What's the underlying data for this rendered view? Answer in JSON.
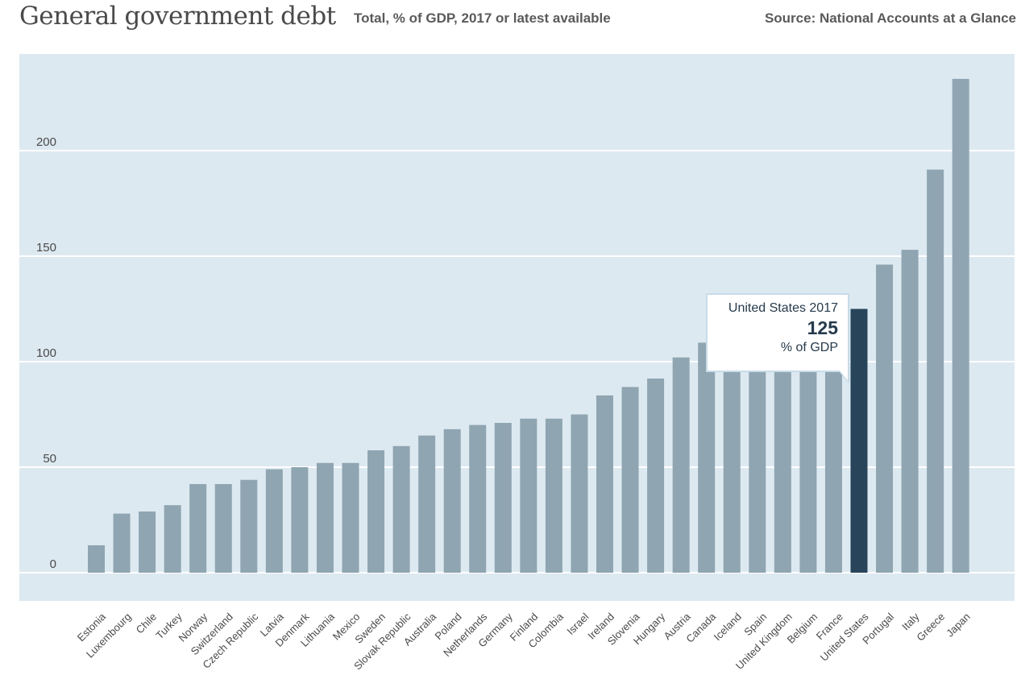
{
  "header": {
    "title": "General government debt",
    "subtitle": "Total, % of GDP, 2017 or latest available",
    "source": "Source: National Accounts at a Glance"
  },
  "tooltip": {
    "title": "United States 2017",
    "value": "125",
    "unit": "% of GDP"
  },
  "colors": {
    "panel": "#dde9f1",
    "bar": "#8fa5b1",
    "highlight": "#28445a",
    "grid": "#ffffff",
    "axis_text": "#4a4a4a"
  },
  "chart_data": {
    "type": "bar",
    "title": "General government debt",
    "subtitle": "Total, % of GDP, 2017 or latest available",
    "xlabel": "",
    "ylabel": "% of GDP",
    "ylim": [
      -13,
      238
    ],
    "yticks": [
      0,
      50,
      100,
      150,
      200
    ],
    "grid": true,
    "highlighted": "United States",
    "categories": [
      "Estonia",
      "Luxembourg",
      "Chile",
      "Turkey",
      "Norway",
      "Switzerland",
      "Czech Republic",
      "Latvia",
      "Denmark",
      "Lithuania",
      "Mexico",
      "Sweden",
      "Slovak Republic",
      "Australia",
      "Poland",
      "Netherlands",
      "Germany",
      "Finland",
      "Colombia",
      "Israel",
      "Ireland",
      "Slovenia",
      "Hungary",
      "Austria",
      "Canada",
      "Iceland",
      "Spain",
      "United Kingdom",
      "Belgium",
      "France",
      "United States",
      "Portugal",
      "Italy",
      "Greece",
      "Japan"
    ],
    "values": [
      13,
      28,
      29,
      32,
      42,
      42,
      44,
      49,
      50,
      52,
      52,
      58,
      60,
      65,
      68,
      70,
      71,
      73,
      73,
      75,
      84,
      88,
      92,
      102,
      109,
      111,
      113,
      117,
      121,
      123,
      125,
      146,
      153,
      191,
      234
    ]
  }
}
